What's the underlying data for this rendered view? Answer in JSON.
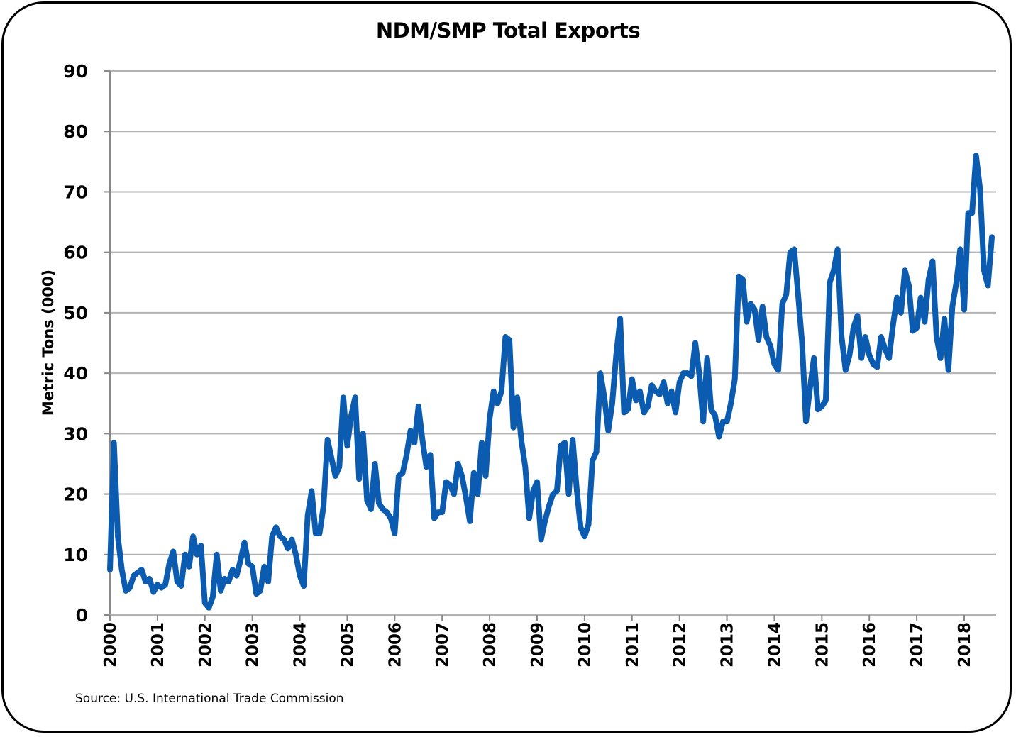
{
  "chart_data": {
    "type": "line",
    "title": "NDM/SMP Total Exports",
    "xlabel": "",
    "ylabel": "Metric Tons (000)",
    "ylim": [
      0,
      90
    ],
    "yticks": [
      0,
      10,
      20,
      30,
      40,
      50,
      60,
      70,
      80,
      90
    ],
    "xticks": [
      "2000",
      "2001",
      "2002",
      "2003",
      "2004",
      "2005",
      "2006",
      "2007",
      "2008",
      "2009",
      "2010",
      "2011",
      "2012",
      "2013",
      "2014",
      "2015",
      "2016",
      "2017",
      "2018"
    ],
    "x_unit": "monthly",
    "grid": "horizontal",
    "legend": "none",
    "line_color": "#0B5CB0",
    "values_by_year": {
      "2000": [
        7.5,
        28.5,
        13,
        7.5,
        4,
        4.5,
        6.5,
        7,
        7.5,
        5.5,
        6,
        3.8
      ],
      "2001": [
        5,
        4.5,
        5,
        8.5,
        10.5,
        5.5,
        4.8,
        10,
        8,
        13,
        10,
        11.5
      ],
      "2002": [
        2,
        1.2,
        3,
        10,
        4,
        6,
        5.5,
        7.5,
        6.5,
        9,
        12,
        8.5
      ],
      "2003": [
        8,
        3.5,
        4,
        8,
        5.5,
        13,
        14.5,
        13,
        12.5,
        11,
        12.5,
        10
      ],
      "2004": [
        6.5,
        4.8,
        16.5,
        20.5,
        13.5,
        13.5,
        18,
        29,
        26,
        23,
        24.5,
        36
      ],
      "2005": [
        28,
        33,
        36,
        22.5,
        30,
        19,
        17.5,
        25,
        18.5,
        17.5,
        17,
        16
      ],
      "2006": [
        13.5,
        23,
        23.5,
        26.5,
        30.5,
        28.5,
        34.5,
        29,
        24.5,
        26.5,
        16,
        17
      ],
      "2007": [
        17,
        22,
        21.5,
        20,
        25,
        23,
        19.5,
        15.5,
        23.5,
        20,
        28.5,
        23
      ],
      "2008": [
        32.5,
        37,
        35,
        37,
        46,
        45.5,
        31,
        36,
        29,
        24.5,
        16,
        20.5
      ],
      "2009": [
        22,
        12.5,
        15.5,
        18,
        20,
        20.5,
        28,
        28.5,
        20,
        29,
        21,
        14.5
      ],
      "2010": [
        13,
        15,
        25.5,
        27,
        40,
        36,
        30.5,
        35,
        43,
        49,
        33.5,
        34
      ],
      "2011": [
        39,
        35.5,
        37,
        33.5,
        34.5,
        38,
        37,
        36.5,
        38.5,
        35,
        37,
        33.5
      ],
      "2012": [
        38.5,
        40,
        40,
        39.5,
        45,
        40,
        32,
        42.5,
        34,
        33,
        29.5,
        32
      ],
      "2013": [
        32,
        35,
        39,
        56,
        55.5,
        48.5,
        51.5,
        50.5,
        45.5,
        51,
        46,
        44.5
      ],
      "2014": [
        41.5,
        40.5,
        51.5,
        53,
        60,
        60.5,
        53,
        45,
        32,
        37.5,
        42.5,
        34
      ],
      "2015": [
        34.5,
        35.5,
        55,
        57,
        60.5,
        46,
        40.5,
        43,
        47.5,
        49.5,
        42.5,
        46
      ],
      "2016": [
        43,
        41.5,
        41,
        46,
        44,
        42.5,
        48,
        52.5,
        50,
        57,
        54.5,
        47
      ],
      "2017": [
        47.5,
        52.5,
        48.5,
        55.5,
        58.5,
        46,
        42.5,
        49,
        40.5,
        51,
        55,
        60.5
      ],
      "2018": [
        50.5,
        66.5,
        66.5,
        76,
        70.5,
        57,
        54.5,
        62.5
      ]
    },
    "source": "Source:  U.S. International Trade Commission"
  }
}
